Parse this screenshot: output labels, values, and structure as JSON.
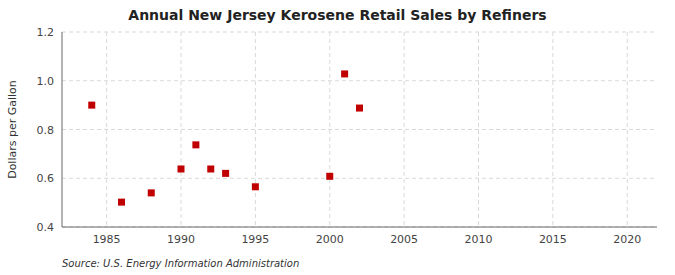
{
  "chart_data": {
    "type": "scatter",
    "title": "Annual New Jersey Kerosene Retail Sales by Refiners",
    "ylabel": "Dollars per Gallon",
    "source": "Source: U.S. Energy Information Administration",
    "x": [
      1984,
      1986,
      1988,
      1990,
      1991,
      1992,
      1993,
      1995,
      2000,
      2001,
      2002
    ],
    "values": [
      0.9,
      0.502,
      0.54,
      0.638,
      0.737,
      0.638,
      0.62,
      0.565,
      0.608,
      1.028,
      0.888
    ],
    "color": "#c00000",
    "marker": "square",
    "xlim": [
      1982,
      2022
    ],
    "ylim": [
      0.4,
      1.2
    ],
    "xticks": [
      1985,
      1990,
      1995,
      2000,
      2005,
      2010,
      2015,
      2020
    ],
    "yticks": [
      0.4,
      0.6,
      0.8,
      {
        "value": 1.0,
        "label": "1.0"
      },
      1.2
    ],
    "grid": true
  }
}
